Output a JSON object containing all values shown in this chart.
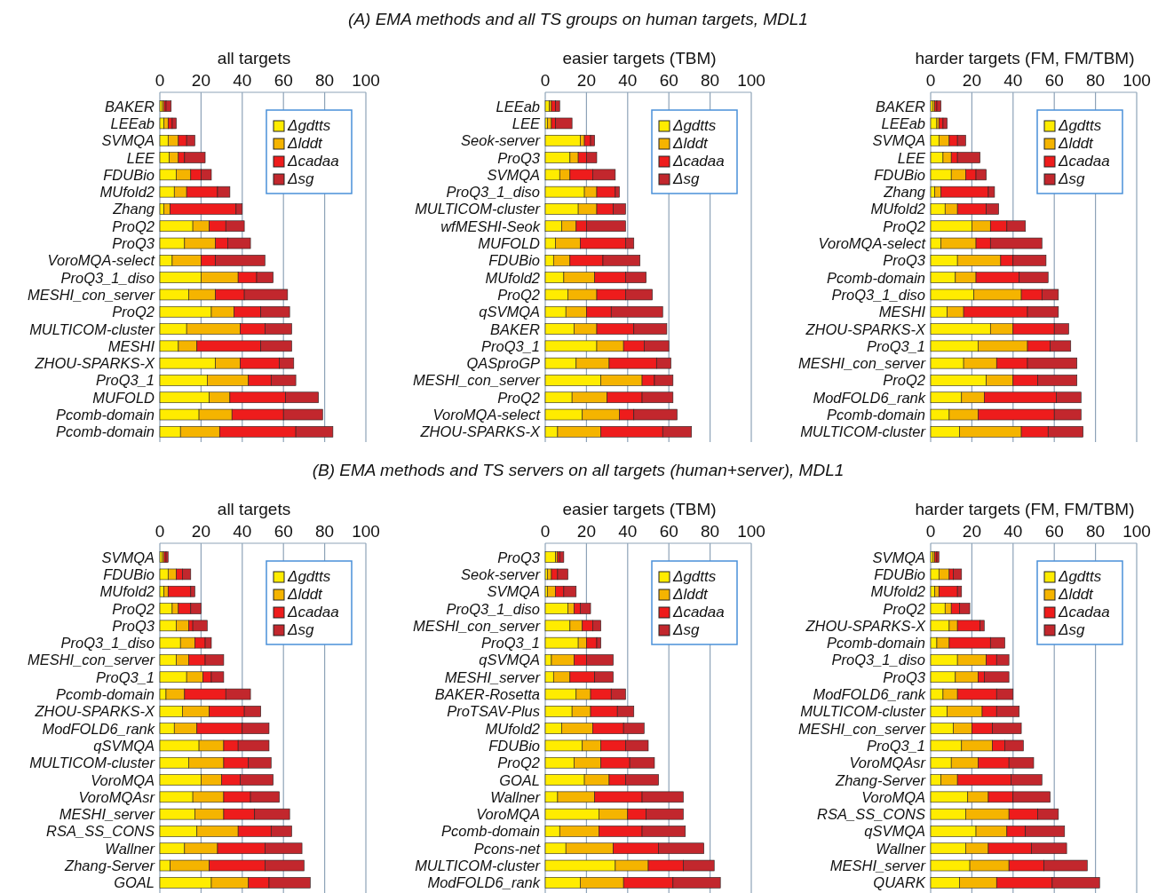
{
  "chart_data": [
    {
      "type": "bar",
      "orientation": "horizontal",
      "stacked": true,
      "title": "all targets",
      "annotations": [
        "(A)    EMA methods and all TS groups on human targets, MDL1"
      ],
      "xlim": [
        0,
        100
      ],
      "xticks": [
        0,
        20,
        40,
        60,
        80,
        100
      ],
      "grid": "x",
      "legend": "top right",
      "categories": [
        "BAKER",
        "LEEab",
        "SVMQA",
        "LEE",
        "FDUBio",
        "MUfold2",
        "Zhang",
        "ProQ2",
        "ProQ3",
        "VoroMQA-select",
        "ProQ3_1_diso",
        "MESHI_con_server",
        "ProQ2",
        "MULTICOM-cluster",
        "MESHI",
        "ZHOU-SPARKS-X",
        "ProQ3_1",
        "MUFOLD",
        "Pcomb-domain",
        "Pcomb-domain"
      ],
      "series": [
        {
          "name": "Δgdtts",
          "color": "#ffec00",
          "values": [
            1,
            2,
            4,
            4.5,
            8,
            7,
            2,
            16,
            12,
            6,
            20,
            14,
            25,
            13,
            9,
            27,
            23,
            24,
            19,
            10
          ]
        },
        {
          "name": "Δlddt",
          "color": "#f5b400",
          "values": [
            1,
            2,
            5,
            4.5,
            7,
            6,
            3,
            8,
            15,
            14,
            18,
            13,
            11,
            26,
            9,
            12,
            20,
            10,
            16,
            19
          ]
        },
        {
          "name": "Δcadaa",
          "color": "#ee1c1c",
          "values": [
            1,
            2,
            4,
            3,
            5,
            15,
            32,
            8,
            6,
            7,
            9,
            14,
            13,
            12,
            31,
            19,
            11,
            27,
            25,
            37
          ]
        },
        {
          "name": "Δsg",
          "color": "#c2272d",
          "values": [
            2.5,
            2,
            4,
            10,
            5,
            6,
            3,
            9,
            11,
            24,
            8,
            21,
            14,
            13,
            15,
            7,
            12,
            16,
            19,
            18
          ]
        }
      ]
    },
    {
      "type": "bar",
      "orientation": "horizontal",
      "stacked": true,
      "title": "easier targets (TBM)",
      "xlim": [
        0,
        100
      ],
      "xticks": [
        0,
        20,
        40,
        60,
        80,
        100
      ],
      "grid": "x",
      "legend": "top right",
      "categories": [
        "LEEab",
        "LEE",
        "Seok-server",
        "ProQ3",
        "SVMQA",
        "ProQ3_1_diso",
        "MULTICOM-cluster",
        "wfMESHI-Seok",
        "MUFOLD",
        "FDUBio",
        "MUfold2",
        "ProQ2",
        "qSVMQA",
        "BAKER",
        "ProQ3_1",
        "QASproGP",
        "MESHI_con_server",
        "ProQ2",
        "VoroMQA-select",
        "ZHOU-SPARKS-X"
      ],
      "series": [
        {
          "name": "Δgdtts",
          "color": "#ffec00",
          "values": [
            2,
            1,
            17,
            12,
            7,
            19,
            16,
            8,
            5,
            4,
            9,
            11,
            10,
            14,
            25,
            15,
            27,
            13,
            18,
            6
          ]
        },
        {
          "name": "Δlddt",
          "color": "#f5b400",
          "values": [
            1,
            2,
            2,
            4,
            5,
            6,
            9,
            7,
            12,
            8,
            15,
            14,
            10,
            11,
            13,
            16,
            20,
            17,
            18,
            21
          ]
        },
        {
          "name": "Δcadaa",
          "color": "#ee1c1c",
          "values": [
            2,
            2,
            3,
            4,
            11,
            9,
            8,
            5,
            22,
            16,
            15,
            14,
            12,
            18,
            10,
            23,
            6,
            17,
            7,
            30
          ]
        },
        {
          "name": "Δsg",
          "color": "#c2272d",
          "values": [
            2,
            8,
            2,
            5,
            11,
            2,
            6,
            19,
            4,
            18,
            10,
            13,
            25,
            16,
            12,
            7,
            9,
            15,
            21,
            14
          ]
        }
      ]
    },
    {
      "type": "bar",
      "orientation": "horizontal",
      "stacked": true,
      "title": "harder targets (FM, FM/TBM)",
      "xlim": [
        0,
        100
      ],
      "xticks": [
        0,
        20,
        40,
        60,
        80,
        100
      ],
      "grid": "x",
      "legend": "top right",
      "categories": [
        "BAKER",
        "LEEab",
        "SVMQA",
        "LEE",
        "FDUBio",
        "Zhang",
        "MUfold2",
        "ProQ2",
        "VoroMQA-select",
        "ProQ3",
        "Pcomb-domain",
        "ProQ3_1_diso",
        "MESHI",
        "ZHOU-SPARKS-X",
        "ProQ3_1",
        "MESHI_con_server",
        "ProQ2",
        "ModFOLD6_rank",
        "Pcomb-domain",
        "MULTICOM-cluster"
      ],
      "series": [
        {
          "name": "Δgdtts",
          "color": "#ffec00",
          "values": [
            1,
            3,
            4,
            6,
            10,
            2,
            7,
            20,
            5,
            13,
            12,
            21,
            8,
            29,
            23,
            16,
            27,
            15,
            9,
            14
          ]
        },
        {
          "name": "Δlddt",
          "color": "#f5b400",
          "values": [
            1,
            1,
            5,
            4,
            7,
            3,
            6,
            9,
            17,
            21,
            10,
            23,
            8,
            11,
            24,
            16,
            13,
            11,
            14,
            30
          ]
        },
        {
          "name": "Δcadaa",
          "color": "#ee1c1c",
          "values": [
            1,
            2,
            4,
            3,
            5,
            23,
            14,
            8,
            7,
            6,
            21,
            10,
            31,
            20,
            11,
            15,
            12,
            35,
            37,
            13
          ]
        },
        {
          "name": "Δsg",
          "color": "#c2272d",
          "values": [
            2,
            2,
            4,
            11,
            5,
            3,
            6,
            9,
            25,
            16,
            14,
            8,
            15,
            7,
            10,
            24,
            19,
            12,
            13,
            17
          ]
        }
      ]
    },
    {
      "type": "bar",
      "orientation": "horizontal",
      "stacked": true,
      "title": "all targets",
      "annotations": [
        "(B)    EMA methods and TS servers on all targets (human+server), MDL1"
      ],
      "xlim": [
        0,
        100
      ],
      "xticks": [
        0,
        20,
        40,
        60,
        80,
        100
      ],
      "grid": "x",
      "legend": "top right",
      "categories": [
        "SVMQA",
        "FDUBio",
        "MUfold2",
        "ProQ2",
        "ProQ3",
        "ProQ3_1_diso",
        "MESHI_con_server",
        "ProQ3_1",
        "Pcomb-domain",
        "ZHOU-SPARKS-X",
        "ModFOLD6_rank",
        "qSVMQA",
        "MULTICOM-cluster",
        "VoroMQA",
        "VoroMQAsr",
        "MESHI_server",
        "RSA_SS_CONS",
        "Wallner",
        "Zhang-Server",
        "GOAL"
      ],
      "series": [
        {
          "name": "Δgdtts",
          "color": "#ffec00",
          "values": [
            1,
            4,
            2,
            6,
            8,
            10,
            8,
            13,
            3,
            11,
            7,
            19,
            14,
            20,
            16,
            17,
            18,
            12,
            5,
            25
          ]
        },
        {
          "name": "Δlddt",
          "color": "#f5b400",
          "values": [
            1,
            4,
            2,
            3,
            6,
            7,
            6,
            8,
            9,
            13,
            11,
            12,
            17,
            10,
            15,
            14,
            20,
            16,
            19,
            18
          ]
        },
        {
          "name": "Δcadaa",
          "color": "#ee1c1c",
          "values": [
            1,
            3,
            11,
            6,
            2,
            5,
            8,
            4,
            20,
            17,
            22,
            7,
            12,
            9,
            13,
            15,
            16,
            23,
            27,
            10
          ]
        },
        {
          "name": "Δsg",
          "color": "#c2272d",
          "values": [
            1,
            4,
            2,
            5,
            7,
            3,
            9,
            6,
            12,
            8,
            13,
            15,
            11,
            16,
            14,
            17,
            10,
            18,
            19,
            20
          ]
        }
      ]
    },
    {
      "type": "bar",
      "orientation": "horizontal",
      "stacked": true,
      "title": "easier targets (TBM)",
      "xlim": [
        0,
        100
      ],
      "xticks": [
        0,
        20,
        40,
        60,
        80,
        100
      ],
      "grid": "x",
      "legend": "top right",
      "categories": [
        "ProQ3",
        "Seok-server",
        "SVMQA",
        "ProQ3_1_diso",
        "MESHI_con_server",
        "ProQ3_1",
        "qSVMQA",
        "MESHI_server",
        "BAKER-Rosetta",
        "ProTSAV-Plus",
        "MUfold2",
        "FDUBio",
        "ProQ2",
        "GOAL",
        "Wallner",
        "VoroMQA",
        "Pcomb-domain",
        "Pcons-net",
        "MULTICOM-cluster",
        "ModFOLD6_rank"
      ],
      "series": [
        {
          "name": "Δgdtts",
          "color": "#ffec00",
          "values": [
            5,
            1,
            1,
            11,
            12,
            16,
            3,
            4,
            15,
            13,
            8,
            18,
            14,
            19,
            6,
            26,
            7,
            10,
            34,
            17
          ]
        },
        {
          "name": "Δlddt",
          "color": "#f5b400",
          "values": [
            1,
            2,
            4,
            3,
            6,
            4,
            11,
            8,
            7,
            9,
            15,
            9,
            13,
            12,
            18,
            14,
            19,
            23,
            16,
            21
          ]
        },
        {
          "name": "Δcadaa",
          "color": "#ee1c1c",
          "values": [
            1,
            3,
            4,
            3,
            5,
            5,
            6,
            12,
            10,
            13,
            15,
            12,
            14,
            8,
            23,
            9,
            21,
            22,
            17,
            24
          ]
        },
        {
          "name": "Δsg",
          "color": "#c2272d",
          "values": [
            2,
            5,
            6,
            5,
            4,
            2,
            13,
            9,
            7,
            8,
            10,
            11,
            12,
            16,
            20,
            18,
            21,
            22,
            15,
            23
          ]
        }
      ]
    },
    {
      "type": "bar",
      "orientation": "horizontal",
      "stacked": true,
      "title": "harder targets (FM, FM/TBM)",
      "xlim": [
        0,
        100
      ],
      "xticks": [
        0,
        20,
        40,
        60,
        80,
        100
      ],
      "grid": "x",
      "legend": "top right",
      "categories": [
        "SVMQA",
        "FDUBio",
        "MUfold2",
        "ProQ2",
        "ZHOU-SPARKS-X",
        "Pcomb-domain",
        "ProQ3_1_diso",
        "ProQ3",
        "ModFOLD6_rank",
        "MULTICOM-cluster",
        "MESHI_con_server",
        "ProQ3_1",
        "VoroMQAsr",
        "Zhang-Server",
        "VoroMQA",
        "RSA_SS_CONS",
        "qSVMQA",
        "Wallner",
        "MESHI_server",
        "QUARK"
      ],
      "series": [
        {
          "name": "Δgdtts",
          "color": "#ffec00",
          "values": [
            1,
            4,
            2,
            7,
            9,
            3,
            13,
            12,
            6,
            8,
            11,
            15,
            10,
            5,
            18,
            17,
            22,
            17,
            19,
            14
          ]
        },
        {
          "name": "Δlddt",
          "color": "#f5b400",
          "values": [
            1,
            5,
            2,
            3,
            4,
            6,
            14,
            11,
            7,
            17,
            9,
            15,
            13,
            8,
            10,
            21,
            15,
            11,
            19,
            18
          ]
        },
        {
          "name": "Δcadaa",
          "color": "#ee1c1c",
          "values": [
            1,
            2,
            9,
            4,
            11,
            20,
            5,
            3,
            19,
            7,
            10,
            6,
            15,
            26,
            12,
            14,
            9,
            21,
            17,
            27
          ]
        },
        {
          "name": "Δsg",
          "color": "#c2272d",
          "values": [
            1,
            4,
            2,
            5,
            2,
            7,
            6,
            12,
            8,
            11,
            14,
            9,
            12,
            15,
            18,
            10,
            19,
            17,
            21,
            23
          ]
        }
      ]
    }
  ]
}
